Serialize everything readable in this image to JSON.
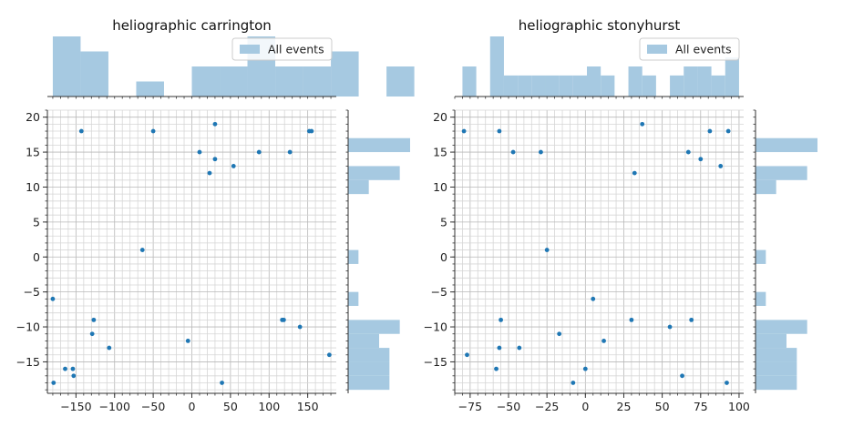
{
  "chart_data": [
    {
      "type": "scatter",
      "title": "heliographic carrington",
      "legend_label": "All events",
      "legend_position": "top-right",
      "xlabel": "",
      "ylabel": "",
      "xlim": [
        -187,
        187
      ],
      "ylim": [
        -19.5,
        21
      ],
      "xticks": [
        -150,
        -100,
        -50,
        0,
        50,
        100,
        150
      ],
      "yticks": [
        -15,
        -10,
        -5,
        0,
        5,
        10,
        15,
        20
      ],
      "grid": "major and minor",
      "points": [
        {
          "x": -143,
          "y": 18
        },
        {
          "x": -50,
          "y": 18
        },
        {
          "x": 30,
          "y": 19
        },
        {
          "x": 152,
          "y": 18
        },
        {
          "x": 155,
          "y": 18
        },
        {
          "x": 10,
          "y": 15
        },
        {
          "x": 87,
          "y": 15
        },
        {
          "x": 127,
          "y": 15
        },
        {
          "x": 30,
          "y": 14
        },
        {
          "x": 54,
          "y": 13
        },
        {
          "x": 23,
          "y": 12
        },
        {
          "x": -64,
          "y": 1
        },
        {
          "x": -180,
          "y": -6
        },
        {
          "x": -127,
          "y": -9
        },
        {
          "x": 117,
          "y": -9
        },
        {
          "x": 119,
          "y": -9
        },
        {
          "x": 140,
          "y": -10
        },
        {
          "x": -129,
          "y": -11
        },
        {
          "x": -5,
          "y": -12
        },
        {
          "x": -107,
          "y": -13
        },
        {
          "x": 178,
          "y": -14
        },
        {
          "x": -164,
          "y": -16
        },
        {
          "x": -154,
          "y": -16
        },
        {
          "x": -153,
          "y": -17
        },
        {
          "x": -179,
          "y": -18
        },
        {
          "x": 39,
          "y": -18
        }
      ],
      "top_hist": {
        "edges_start": -180,
        "bin_width": 36,
        "counts": [
          2,
          1.5,
          0,
          0.5,
          0,
          1,
          1,
          2,
          1,
          1,
          1.5,
          0,
          1
        ]
      },
      "right_hist": {
        "edges_start": -19,
        "bin_width": 2,
        "counts": [
          2,
          2,
          2,
          1.5,
          2.5,
          0,
          0.5,
          0,
          0,
          0.5,
          0,
          0,
          0,
          0,
          1,
          2.5,
          0,
          3,
          0
        ]
      }
    },
    {
      "type": "scatter",
      "title": "heliographic stonyhurst",
      "legend_label": "All events",
      "legend_position": "top-right",
      "xlabel": "",
      "ylabel": "",
      "xlim": [
        -85,
        103
      ],
      "ylim": [
        -19.5,
        21
      ],
      "xticks": [
        -75,
        -50,
        -25,
        0,
        25,
        50,
        75,
        100
      ],
      "yticks": [
        -15,
        -10,
        -5,
        0,
        5,
        10,
        15,
        20
      ],
      "grid": "major and minor",
      "points": [
        {
          "x": -79,
          "y": 18
        },
        {
          "x": -56,
          "y": 18
        },
        {
          "x": 37,
          "y": 19
        },
        {
          "x": 81,
          "y": 18
        },
        {
          "x": 93,
          "y": 18
        },
        {
          "x": -47,
          "y": 15
        },
        {
          "x": -29,
          "y": 15
        },
        {
          "x": 67,
          "y": 15
        },
        {
          "x": 75,
          "y": 14
        },
        {
          "x": 88,
          "y": 13
        },
        {
          "x": 32,
          "y": 12
        },
        {
          "x": -25,
          "y": 1
        },
        {
          "x": 5,
          "y": -6
        },
        {
          "x": -55,
          "y": -9
        },
        {
          "x": 30,
          "y": -9
        },
        {
          "x": 69,
          "y": -9
        },
        {
          "x": 55,
          "y": -10
        },
        {
          "x": -17,
          "y": -11
        },
        {
          "x": 12,
          "y": -12
        },
        {
          "x": -56,
          "y": -13
        },
        {
          "x": -43,
          "y": -13
        },
        {
          "x": -77,
          "y": -14
        },
        {
          "x": -58,
          "y": -16
        },
        {
          "x": 0,
          "y": -16
        },
        {
          "x": 63,
          "y": -17
        },
        {
          "x": -8,
          "y": -18
        },
        {
          "x": 92,
          "y": -18
        }
      ],
      "top_hist": {
        "edges_start": -80,
        "bin_width": 9,
        "counts": [
          1,
          0,
          2,
          0.7,
          0.7,
          0.7,
          0.7,
          0.7,
          0.7,
          1,
          0.7,
          0,
          1,
          0.7,
          0,
          0.7,
          1,
          1,
          0.7,
          1.3,
          0
        ]
      },
      "right_hist": {
        "edges_start": -19,
        "bin_width": 2,
        "counts": [
          2,
          2,
          2,
          1.5,
          2.5,
          0,
          0.5,
          0,
          0,
          0.5,
          0,
          0,
          0,
          0,
          1,
          2.5,
          0,
          3,
          0
        ]
      }
    }
  ]
}
